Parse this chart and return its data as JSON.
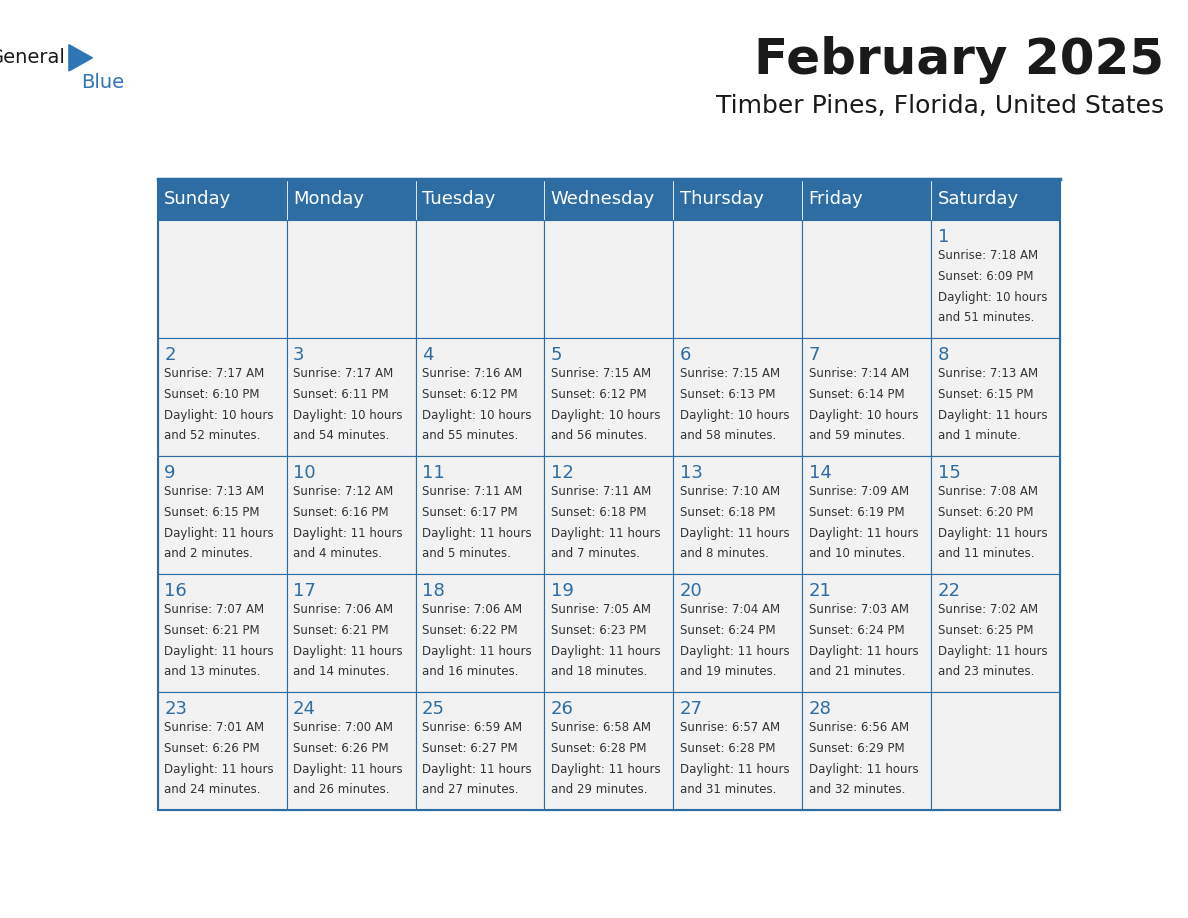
{
  "title": "February 2025",
  "subtitle": "Timber Pines, Florida, United States",
  "header_bg": "#2E6DA4",
  "header_text_color": "#FFFFFF",
  "cell_bg": "#F2F2F2",
  "day_number_color": "#2E6DA4",
  "cell_text_color": "#333333",
  "border_color": "#2E6DA4",
  "days_of_week": [
    "Sunday",
    "Monday",
    "Tuesday",
    "Wednesday",
    "Thursday",
    "Friday",
    "Saturday"
  ],
  "calendar_data": [
    [
      null,
      null,
      null,
      null,
      null,
      null,
      {
        "day": 1,
        "sunrise": "7:18 AM",
        "sunset": "6:09 PM",
        "daylight": "10 hours and 51 minutes."
      }
    ],
    [
      {
        "day": 2,
        "sunrise": "7:17 AM",
        "sunset": "6:10 PM",
        "daylight": "10 hours and 52 minutes."
      },
      {
        "day": 3,
        "sunrise": "7:17 AM",
        "sunset": "6:11 PM",
        "daylight": "10 hours and 54 minutes."
      },
      {
        "day": 4,
        "sunrise": "7:16 AM",
        "sunset": "6:12 PM",
        "daylight": "10 hours and 55 minutes."
      },
      {
        "day": 5,
        "sunrise": "7:15 AM",
        "sunset": "6:12 PM",
        "daylight": "10 hours and 56 minutes."
      },
      {
        "day": 6,
        "sunrise": "7:15 AM",
        "sunset": "6:13 PM",
        "daylight": "10 hours and 58 minutes."
      },
      {
        "day": 7,
        "sunrise": "7:14 AM",
        "sunset": "6:14 PM",
        "daylight": "10 hours and 59 minutes."
      },
      {
        "day": 8,
        "sunrise": "7:13 AM",
        "sunset": "6:15 PM",
        "daylight": "11 hours and 1 minute."
      }
    ],
    [
      {
        "day": 9,
        "sunrise": "7:13 AM",
        "sunset": "6:15 PM",
        "daylight": "11 hours and 2 minutes."
      },
      {
        "day": 10,
        "sunrise": "7:12 AM",
        "sunset": "6:16 PM",
        "daylight": "11 hours and 4 minutes."
      },
      {
        "day": 11,
        "sunrise": "7:11 AM",
        "sunset": "6:17 PM",
        "daylight": "11 hours and 5 minutes."
      },
      {
        "day": 12,
        "sunrise": "7:11 AM",
        "sunset": "6:18 PM",
        "daylight": "11 hours and 7 minutes."
      },
      {
        "day": 13,
        "sunrise": "7:10 AM",
        "sunset": "6:18 PM",
        "daylight": "11 hours and 8 minutes."
      },
      {
        "day": 14,
        "sunrise": "7:09 AM",
        "sunset": "6:19 PM",
        "daylight": "11 hours and 10 minutes."
      },
      {
        "day": 15,
        "sunrise": "7:08 AM",
        "sunset": "6:20 PM",
        "daylight": "11 hours and 11 minutes."
      }
    ],
    [
      {
        "day": 16,
        "sunrise": "7:07 AM",
        "sunset": "6:21 PM",
        "daylight": "11 hours and 13 minutes."
      },
      {
        "day": 17,
        "sunrise": "7:06 AM",
        "sunset": "6:21 PM",
        "daylight": "11 hours and 14 minutes."
      },
      {
        "day": 18,
        "sunrise": "7:06 AM",
        "sunset": "6:22 PM",
        "daylight": "11 hours and 16 minutes."
      },
      {
        "day": 19,
        "sunrise": "7:05 AM",
        "sunset": "6:23 PM",
        "daylight": "11 hours and 18 minutes."
      },
      {
        "day": 20,
        "sunrise": "7:04 AM",
        "sunset": "6:24 PM",
        "daylight": "11 hours and 19 minutes."
      },
      {
        "day": 21,
        "sunrise": "7:03 AM",
        "sunset": "6:24 PM",
        "daylight": "11 hours and 21 minutes."
      },
      {
        "day": 22,
        "sunrise": "7:02 AM",
        "sunset": "6:25 PM",
        "daylight": "11 hours and 23 minutes."
      }
    ],
    [
      {
        "day": 23,
        "sunrise": "7:01 AM",
        "sunset": "6:26 PM",
        "daylight": "11 hours and 24 minutes."
      },
      {
        "day": 24,
        "sunrise": "7:00 AM",
        "sunset": "6:26 PM",
        "daylight": "11 hours and 26 minutes."
      },
      {
        "day": 25,
        "sunrise": "6:59 AM",
        "sunset": "6:27 PM",
        "daylight": "11 hours and 27 minutes."
      },
      {
        "day": 26,
        "sunrise": "6:58 AM",
        "sunset": "6:28 PM",
        "daylight": "11 hours and 29 minutes."
      },
      {
        "day": 27,
        "sunrise": "6:57 AM",
        "sunset": "6:28 PM",
        "daylight": "11 hours and 31 minutes."
      },
      {
        "day": 28,
        "sunrise": "6:56 AM",
        "sunset": "6:29 PM",
        "daylight": "11 hours and 32 minutes."
      },
      null
    ]
  ],
  "logo_general_color": "#1a1a1a",
  "logo_blue_color": "#2E75B6",
  "logo_triangle_color": "#2E75B6",
  "title_fontsize": 36,
  "subtitle_fontsize": 18,
  "header_fontsize": 13,
  "day_number_fontsize": 13,
  "cell_text_fontsize": 8.5
}
